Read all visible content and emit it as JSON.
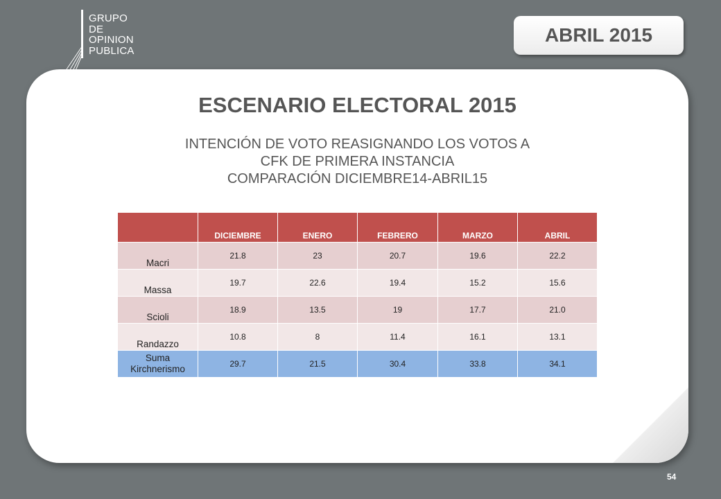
{
  "logo": {
    "lines": [
      "GRUPO",
      "DE",
      "OPINION",
      "PUBLICA"
    ]
  },
  "date_badge": "ABRIL 2015",
  "title": "ESCENARIO ELECTORAL 2015",
  "subtitle": {
    "line1": "INTENCIÓN DE VOTO REASIGNANDO LOS VOTOS A",
    "line2": "CFK DE PRIMERA INSTANCIA",
    "line3": "COMPARACIÓN DICIEMBRE14-ABRIL15"
  },
  "table": {
    "headers": [
      "",
      "DICIEMBRE",
      "ENERO",
      "FEBRERO",
      "MARZO",
      "ABRIL"
    ],
    "rows": [
      {
        "label": "Macri",
        "values": [
          "21.8",
          "23",
          "20.7",
          "19.6",
          "22.2"
        ]
      },
      {
        "label": "Massa",
        "values": [
          "19.7",
          "22.6",
          "19.4",
          "15.2",
          "15.6"
        ]
      },
      {
        "label": "Scioli",
        "values": [
          "18.9",
          "13.5",
          "19",
          "17.7",
          "21.0"
        ]
      },
      {
        "label": "Randazzo",
        "values": [
          "10.8",
          "8",
          "11.4",
          "16.1",
          "13.1"
        ]
      },
      {
        "label": "Suma Kirchnerismo",
        "values": [
          "29.7",
          "21.5",
          "30.4",
          "33.8",
          "34.1"
        ]
      }
    ]
  },
  "page_number": "54",
  "colors": {
    "background": "#6f7577",
    "header_fill": "#c0504d",
    "row_odd": "#e6cfd0",
    "row_even": "#f2e7e7",
    "sum_row": "#8eb4e3",
    "text_gray": "#555555"
  }
}
